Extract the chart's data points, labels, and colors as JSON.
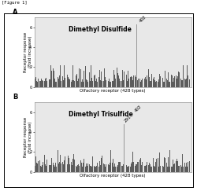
{
  "figure_label": "[Figure 1]",
  "panel_A": {
    "title": "Dimethyl Disulfide",
    "xlabel": "Olfactory receptor (428 types)",
    "ylabel": "Receptor response\n(Fold increase)",
    "n_receptors": 428,
    "ylim": [
      0,
      7
    ],
    "yticks": [
      0,
      2,
      4,
      6
    ],
    "peak_index": 280,
    "peak_value": 6.3,
    "peak_label": "402",
    "label_pos": "A"
  },
  "panel_B": {
    "title": "Dimethyl Trisulfide",
    "xlabel": "Olfactory receptor (428 types)",
    "ylabel": "Receptor response\n(Fold increase)",
    "n_receptors": 428,
    "ylim": [
      0,
      7
    ],
    "yticks": [
      0,
      2,
      4,
      6
    ],
    "peak1_index": 245,
    "peak1_value": 4.8,
    "peak1_label": "291",
    "peak2_index": 270,
    "peak2_value": 5.8,
    "peak2_label": "402",
    "label_pos": "B"
  },
  "noise_seed": 42,
  "bg_color": "#e8e8e8",
  "bar_color": "#444444",
  "peak_color": "#999999",
  "title_fontsize": 5.5,
  "label_fontsize": 4.0,
  "tick_fontsize": 3.5,
  "panel_label_fontsize": 6.0
}
